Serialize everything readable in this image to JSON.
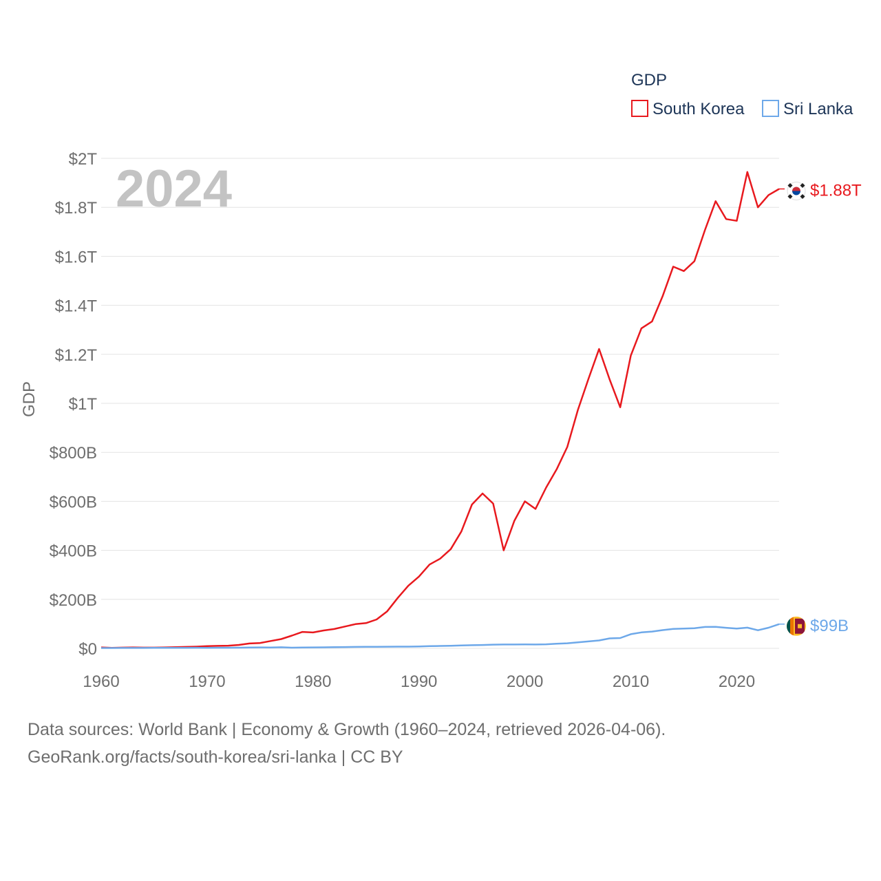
{
  "chart_data": {
    "type": "line",
    "title": "GDP",
    "year_watermark": "2024",
    "ylabel": "GDP",
    "xlabel": "",
    "xlim": [
      1960,
      2024
    ],
    "ylim": [
      0,
      2000
    ],
    "value_unit": "billion USD",
    "x_ticks": [
      1960,
      1970,
      1980,
      1990,
      2000,
      2010,
      2020
    ],
    "x_tick_labels": [
      "1960",
      "1970",
      "1980",
      "1990",
      "2000",
      "2010",
      "2020"
    ],
    "y_ticks": [
      0,
      200,
      400,
      600,
      800,
      1000,
      1200,
      1400,
      1600,
      1800,
      2000
    ],
    "y_tick_labels": [
      "$0",
      "$200B",
      "$400B",
      "$600B",
      "$800B",
      "$1T",
      "$1.2T",
      "$1.4T",
      "$1.6T",
      "$1.8T",
      "$2T"
    ],
    "legend": {
      "title": "GDP",
      "position": "top-right"
    },
    "x": [
      1960,
      1961,
      1962,
      1963,
      1964,
      1965,
      1966,
      1967,
      1968,
      1969,
      1970,
      1971,
      1972,
      1973,
      1974,
      1975,
      1976,
      1977,
      1978,
      1979,
      1980,
      1981,
      1982,
      1983,
      1984,
      1985,
      1986,
      1987,
      1988,
      1989,
      1990,
      1991,
      1992,
      1993,
      1994,
      1995,
      1996,
      1997,
      1998,
      1999,
      2000,
      2001,
      2002,
      2003,
      2004,
      2005,
      2006,
      2007,
      2008,
      2009,
      2010,
      2011,
      2012,
      2013,
      2014,
      2015,
      2016,
      2017,
      2018,
      2019,
      2020,
      2021,
      2022,
      2023,
      2024
    ],
    "series": [
      {
        "name": "South Korea",
        "color": "#e8191e",
        "end_label": "$1.88T",
        "flag": "south-korea-flag",
        "values": [
          4,
          2,
          3,
          4,
          3,
          3,
          4,
          5,
          6,
          7,
          9,
          10,
          11,
          14,
          20,
          22,
          30,
          38,
          52,
          67,
          65,
          73,
          79,
          89,
          99,
          103,
          118,
          151,
          206,
          256,
          293,
          342,
          366,
          405,
          477,
          587,
          632,
          591,
          400,
          520,
          600,
          569,
          656,
          731,
          822,
          973,
          1100,
          1222,
          1097,
          984,
          1195,
          1306,
          1334,
          1437,
          1558,
          1540,
          1580,
          1708,
          1825,
          1752,
          1745,
          1944,
          1800,
          1850,
          1875
        ]
      },
      {
        "name": "Sri Lanka",
        "color": "#6da8e9",
        "end_label": "$99B",
        "flag": "sri-lanka-flag",
        "values": [
          1.4,
          1.5,
          1.6,
          1.7,
          1.8,
          1.9,
          2,
          2.1,
          2.3,
          2.4,
          2.3,
          2.5,
          2.6,
          2.8,
          3.5,
          3.9,
          3.5,
          4.4,
          2.9,
          3.5,
          4,
          4.2,
          4.8,
          5.2,
          6,
          6.2,
          6.4,
          6.7,
          7,
          7,
          8,
          9,
          9.7,
          10.3,
          11.7,
          13,
          13.9,
          15.1,
          15.8,
          15.7,
          16.3,
          15.7,
          16.5,
          18.9,
          20.7,
          24.4,
          28.3,
          32.4,
          40.7,
          42.1,
          58,
          65.3,
          68.4,
          74.3,
          79.4,
          80.6,
          82.4,
          87.4,
          87.9,
          84,
          80.7,
          84.5,
          74,
          84.4,
          99
        ]
      }
    ],
    "source_line_1": "Data sources: World Bank | Economy & Growth (1960–2024, retrieved 2026-04-06).",
    "source_line_2": "GeoRank.org/facts/south-korea/sri-lanka | CC BY"
  }
}
